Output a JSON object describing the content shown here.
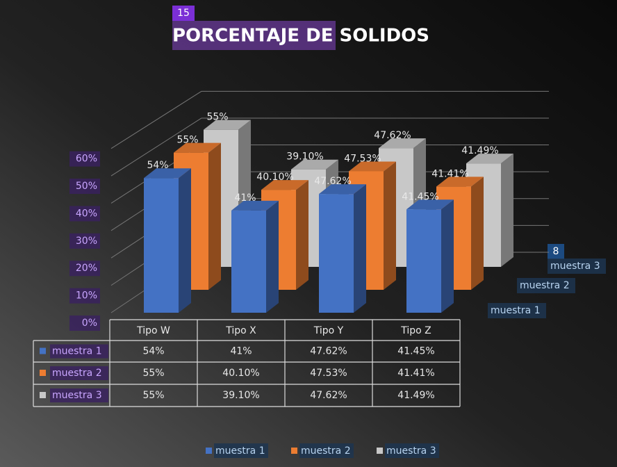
{
  "chart_data": {
    "type": "bar3d",
    "title": "PORCENTAJE DE SOLIDOS",
    "markers": [
      "15",
      "8"
    ],
    "categories": [
      "Tipo W",
      "Tipo X",
      "Tipo Y",
      "Tipo Z"
    ],
    "series": [
      {
        "name": "muestra 1",
        "color": "#4472c4",
        "values": [
          54,
          41,
          47.62,
          41.45
        ],
        "value_labels": [
          "54%",
          "41%",
          "47.62%",
          "41.45%"
        ]
      },
      {
        "name": "muestra 2",
        "color": "#ed7d31",
        "values": [
          55,
          40.1,
          47.53,
          41.41
        ],
        "value_labels": [
          "55%",
          "40.10%",
          "47.53%",
          "41.41%"
        ]
      },
      {
        "name": "muestra 3",
        "color": "#c8c8c8",
        "values": [
          55,
          39.1,
          47.62,
          41.49
        ],
        "value_labels": [
          "55%",
          "39.10%",
          "47.62%",
          "41.49%"
        ]
      }
    ],
    "ylim": [
      0,
      60
    ],
    "yticks": [
      {
        "value": 0,
        "label": "0%"
      },
      {
        "value": 10,
        "label": "10%"
      },
      {
        "value": 20,
        "label": "20%"
      },
      {
        "value": 30,
        "label": "30%"
      },
      {
        "value": 40,
        "label": "40%"
      },
      {
        "value": 50,
        "label": "50%"
      },
      {
        "value": 60,
        "label": "60%"
      }
    ],
    "grid": true,
    "legend": "bottom",
    "data_table": true
  }
}
